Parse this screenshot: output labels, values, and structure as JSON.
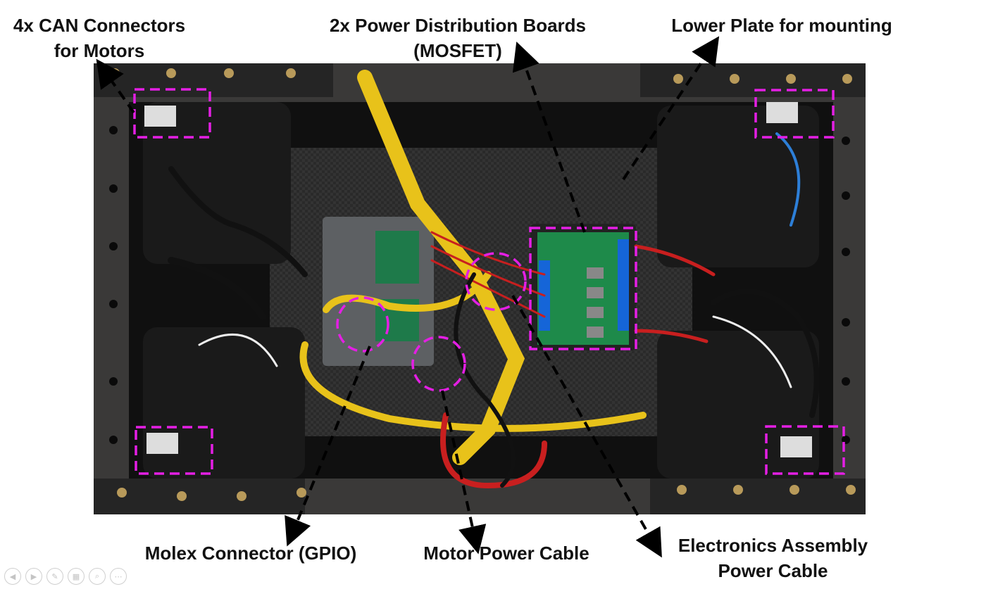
{
  "labels": {
    "can_connectors": [
      "4x CAN Connectors",
      "for Motors"
    ],
    "power_boards": [
      "2x Power Distribution Boards",
      "(MOSFET)"
    ],
    "lower_plate": "Lower Plate for mounting",
    "molex": "Molex Connector (GPIO)",
    "motor_power": "Motor Power Cable",
    "electronics_power": [
      "Electronics Assembly",
      "Power Cable"
    ]
  },
  "colors": {
    "callout_box": "#e41fe4",
    "frame": "#1c1c1c",
    "wire_yellow": "#e8c21a",
    "wire_red": "#c81f1f",
    "board_green": "#1e8a4a",
    "terminal_blue": "#1565d8"
  },
  "slide_nav": {
    "icons": [
      "prev-icon",
      "next-icon",
      "pen-icon",
      "slides-icon",
      "zoom-icon",
      "more-icon"
    ]
  }
}
